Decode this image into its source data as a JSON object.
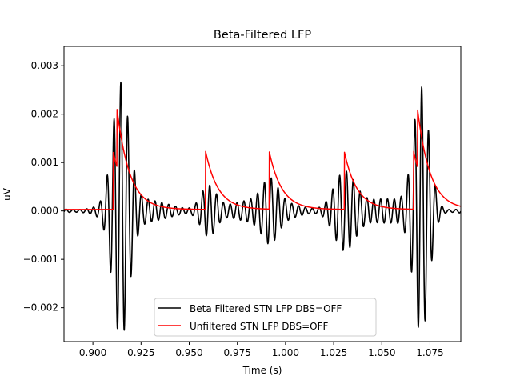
{
  "chart_data": {
    "type": "line",
    "title": "Beta-Filtered LFP",
    "xlabel": "Time (s)",
    "ylabel": "uV",
    "xlim": [
      0.885,
      1.091
    ],
    "ylim": [
      -0.0027,
      0.0034
    ],
    "xticks": [
      0.9,
      0.925,
      0.95,
      0.975,
      1.0,
      1.025,
      1.05,
      1.075
    ],
    "xtick_labels": [
      "0.900",
      "0.925",
      "0.950",
      "0.975",
      "1.000",
      "1.025",
      "1.050",
      "1.075"
    ],
    "yticks": [
      -0.002,
      -0.001,
      0.0,
      0.001,
      0.002,
      0.003
    ],
    "ytick_labels": [
      "−0.002",
      "−0.001",
      "0.000",
      "0.001",
      "0.002",
      "0.003"
    ],
    "grid": false,
    "legend_position": "lower center",
    "series": [
      {
        "name": "Beta Filtered STN LFP DBS=OFF",
        "color": "#000000",
        "style": "beta-oscillation",
        "osc_period_s": 0.00355,
        "bursts": [
          {
            "center_s": 0.9145,
            "peak_uV": 0.00245,
            "width_s": 0.0042
          },
          {
            "center_s": 1.0705,
            "peak_uV": 0.00245,
            "width_s": 0.004
          },
          {
            "center_s": 1.0305,
            "peak_uV": 0.00075,
            "width_s": 0.0055
          },
          {
            "center_s": 0.96,
            "peak_uV": 0.0005,
            "width_s": 0.004
          },
          {
            "center_s": 0.992,
            "peak_uV": 0.00045,
            "width_s": 0.004
          }
        ],
        "baseline_uV": 0.00025
      },
      {
        "name": "Unfiltered STN LFP DBS=OFF",
        "color": "#ff0000",
        "style": "spike-decay",
        "spike_times_s": [
          0.9105,
          0.9125,
          0.9585,
          0.9915,
          1.0305,
          1.0665,
          1.0685
        ],
        "decay_tau_s": 0.0065,
        "spike_height_uV": 0.02,
        "floor_uV": 3e-05
      }
    ]
  }
}
